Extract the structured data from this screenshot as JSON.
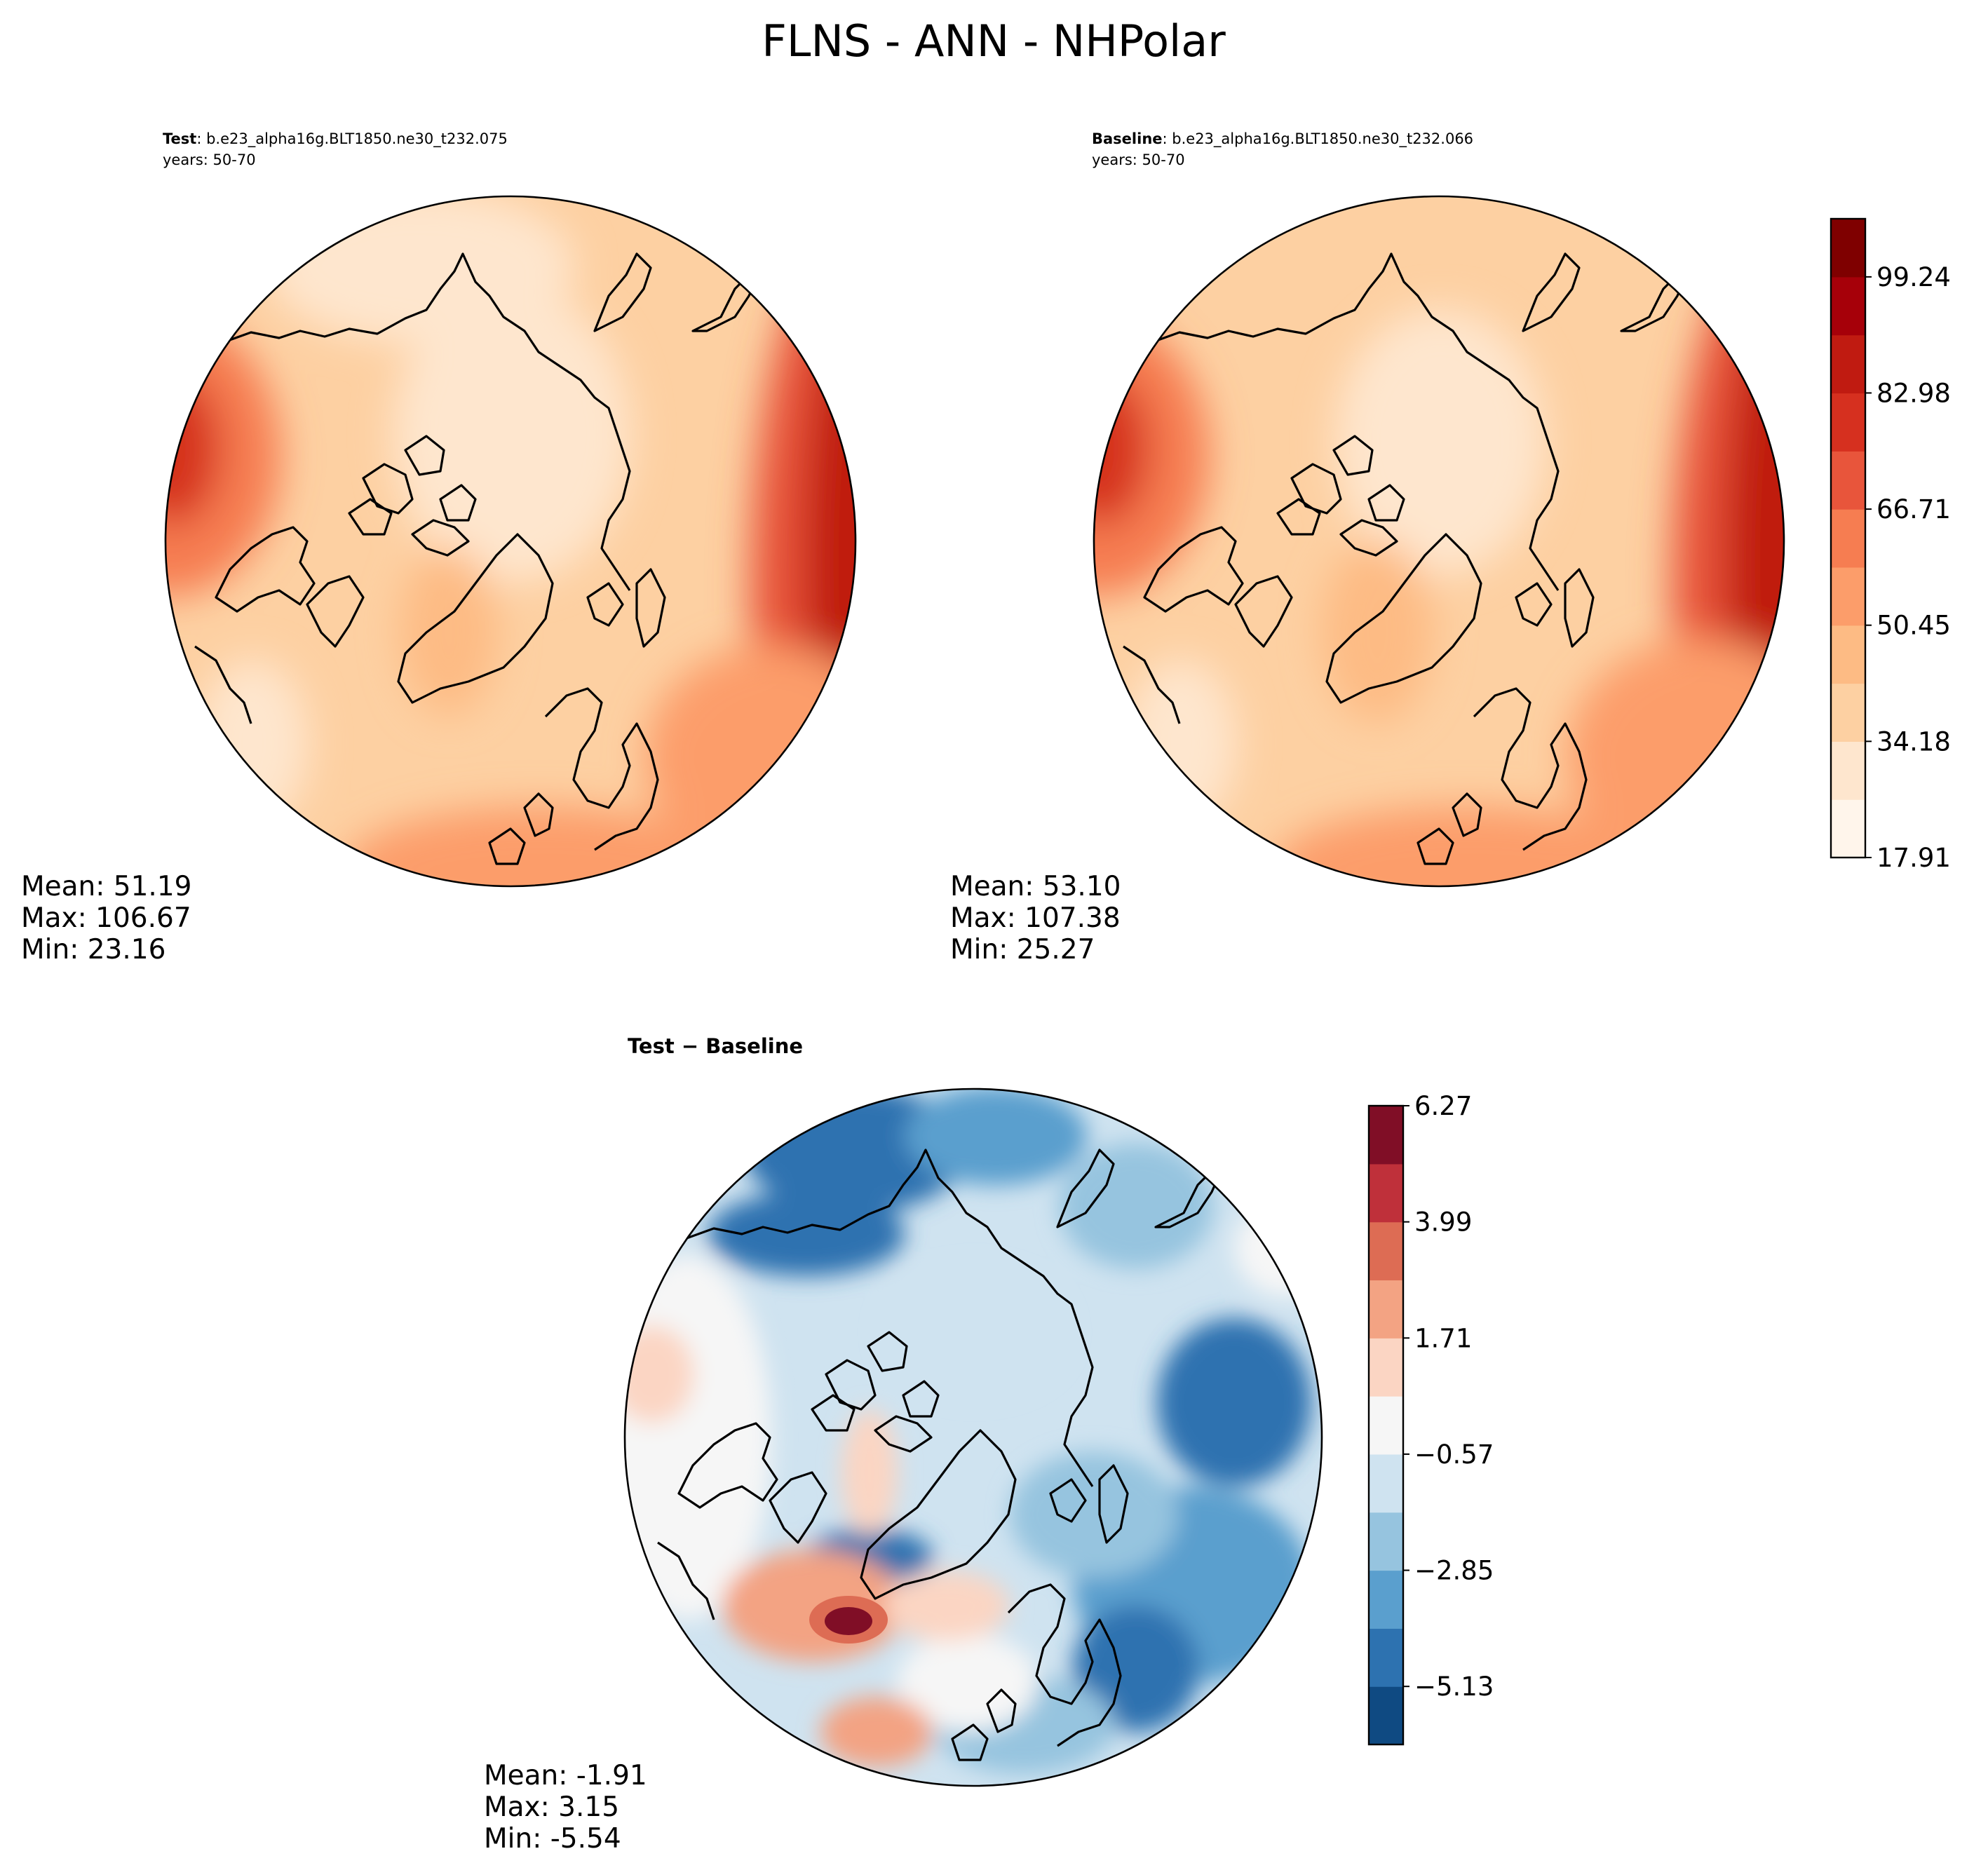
{
  "figure": {
    "title": "FLNS - ANN - NHPolar"
  },
  "chart_data": [
    {
      "type": "heatmap",
      "panel": "test",
      "projection": "north-polar-stereographic",
      "label_bold": "Test",
      "label_rest": ": b.e23_alpha16g.BLT1850.ne30_t232.075",
      "years": "years: 50-70",
      "mean_text": "Mean: 51.19",
      "max_text": "Max: 106.67",
      "min_text": "Min: 23.16",
      "colors": [
        "#fff5eb",
        "#fee6ce",
        "#fdd0a2",
        "#fdbb84",
        "#fc9d6a",
        "#f67d51",
        "#e8553b",
        "#d6301f",
        "#c01b11",
        "#a60009",
        "#7f0000"
      ]
    },
    {
      "type": "heatmap",
      "panel": "baseline",
      "projection": "north-polar-stereographic",
      "label_bold": "Baseline",
      "label_rest": ": b.e23_alpha16g.BLT1850.ne30_t232.066",
      "years": "years: 50-70",
      "mean_text": "Mean: 53.10",
      "max_text": "Max: 107.38",
      "min_text": "Min: 25.27",
      "colorbar": {
        "range": [
          17.91,
          107.38
        ],
        "tick_labels": [
          "17.91",
          "34.18",
          "50.45",
          "66.71",
          "82.98",
          "99.24"
        ],
        "colors": [
          "#fff5eb",
          "#fee6ce",
          "#fdd0a2",
          "#fdbb84",
          "#fc9d6a",
          "#f67d51",
          "#e8553b",
          "#d6301f",
          "#c01b11",
          "#a60009",
          "#7f0000"
        ]
      }
    },
    {
      "type": "heatmap",
      "panel": "difference",
      "projection": "north-polar-stereographic",
      "label_bold": "Test − Baseline",
      "mean_text": "Mean: -1.91",
      "max_text": "Max:  3.15",
      "min_text": "Min: -5.54",
      "colorbar": {
        "range": [
          -6.27,
          6.27
        ],
        "tick_labels": [
          "−5.13",
          "−2.85",
          "−0.57",
          "1.71",
          "3.99",
          "6.27"
        ],
        "colors": [
          "#0f4a82",
          "#2d72b0",
          "#5a9fce",
          "#96c4df",
          "#cfe3f0",
          "#f6f6f6",
          "#fbd5c3",
          "#f3a383",
          "#dd6c54",
          "#bf303a",
          "#800e26"
        ]
      }
    }
  ]
}
